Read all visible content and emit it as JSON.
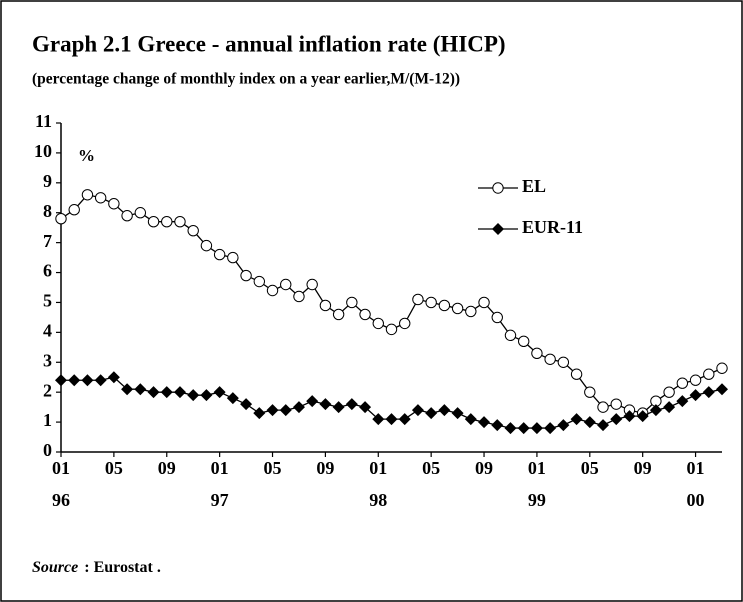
{
  "chart_data": {
    "type": "line",
    "title": "Graph 2.1  Greece - annual inflation rate (HICP)",
    "subtitle": "(percentage change of monthly index on a year earlier,M/(M-12))",
    "y_unit": "%",
    "source": {
      "label": "Source",
      "text": ": Eurostat ."
    },
    "categories": [
      [
        "01",
        "96"
      ],
      null,
      null,
      null,
      [
        "05"
      ],
      null,
      null,
      null,
      [
        "09"
      ],
      null,
      null,
      null,
      [
        "01",
        "97"
      ],
      null,
      null,
      null,
      [
        "05"
      ],
      null,
      null,
      null,
      [
        "09"
      ],
      null,
      null,
      null,
      [
        "01",
        "98"
      ],
      null,
      null,
      null,
      [
        "05"
      ],
      null,
      null,
      null,
      [
        "09"
      ],
      null,
      null,
      null,
      [
        "01",
        "99"
      ],
      null,
      null,
      null,
      [
        "05"
      ],
      null,
      null,
      null,
      [
        "09"
      ],
      null,
      null,
      null,
      [
        "01",
        "00"
      ],
      null,
      null
    ],
    "series": [
      {
        "name": "EL",
        "color": "#000000",
        "marker": "circle",
        "values": [
          7.8,
          8.1,
          8.6,
          8.5,
          8.3,
          7.9,
          8.0,
          7.7,
          7.7,
          7.7,
          7.4,
          6.9,
          6.6,
          6.5,
          5.9,
          5.7,
          5.4,
          5.6,
          5.2,
          5.6,
          4.9,
          4.6,
          5.0,
          4.6,
          4.3,
          4.1,
          4.3,
          5.1,
          5.0,
          4.9,
          4.8,
          4.7,
          5.0,
          4.5,
          3.9,
          3.7,
          3.3,
          3.1,
          3.0,
          2.6,
          2.0,
          1.5,
          1.6,
          1.4,
          1.3,
          1.7,
          2.0,
          2.3,
          2.4,
          2.6,
          2.8
        ]
      },
      {
        "name": "EUR-11",
        "color": "#000000",
        "marker": "diamond",
        "values": [
          2.4,
          2.4,
          2.4,
          2.4,
          2.5,
          2.1,
          2.1,
          2.0,
          2.0,
          2.0,
          1.9,
          1.9,
          2.0,
          1.8,
          1.6,
          1.3,
          1.4,
          1.4,
          1.5,
          1.7,
          1.6,
          1.5,
          1.6,
          1.5,
          1.1,
          1.1,
          1.1,
          1.4,
          1.3,
          1.4,
          1.3,
          1.1,
          1.0,
          0.9,
          0.8,
          0.8,
          0.8,
          0.8,
          0.9,
          1.1,
          1.0,
          0.9,
          1.1,
          1.2,
          1.2,
          1.4,
          1.5,
          1.7,
          1.9,
          2.0,
          2.1
        ]
      }
    ],
    "ylim": [
      0,
      11
    ],
    "yticks": [
      0,
      1,
      2,
      3,
      4,
      5,
      6,
      7,
      8,
      9,
      10,
      11
    ],
    "grid": false,
    "legend": "upper right"
  }
}
